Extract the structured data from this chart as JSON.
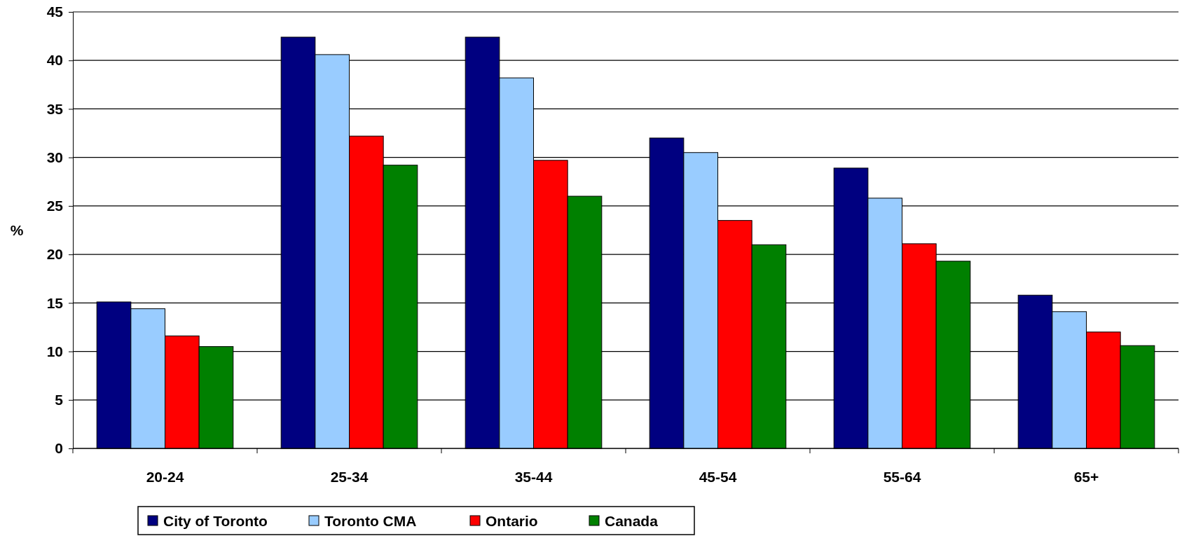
{
  "chart_data": {
    "type": "bar",
    "ylabel": "%",
    "categories": [
      "20-24",
      "25-34",
      "35-44",
      "45-54",
      "55-64",
      "65+"
    ],
    "series": [
      {
        "name": "City of Toronto",
        "color": "#000080",
        "values": [
          15.1,
          42.4,
          42.4,
          32.0,
          28.9,
          15.8
        ]
      },
      {
        "name": "Toronto CMA",
        "color": "#99ccff",
        "values": [
          14.4,
          40.6,
          38.2,
          30.5,
          25.8,
          14.1
        ]
      },
      {
        "name": "Ontario",
        "color": "#ff0000",
        "values": [
          11.6,
          32.2,
          29.7,
          23.5,
          21.1,
          12.0
        ]
      },
      {
        "name": "Canada",
        "color": "#008000",
        "values": [
          10.5,
          29.2,
          26.0,
          21.0,
          19.3,
          10.6
        ]
      }
    ],
    "ylim": [
      0,
      45
    ],
    "yticks": [
      0,
      5,
      10,
      15,
      20,
      25,
      30,
      35,
      40,
      45
    ],
    "grid": "y",
    "legend": "bottom"
  }
}
